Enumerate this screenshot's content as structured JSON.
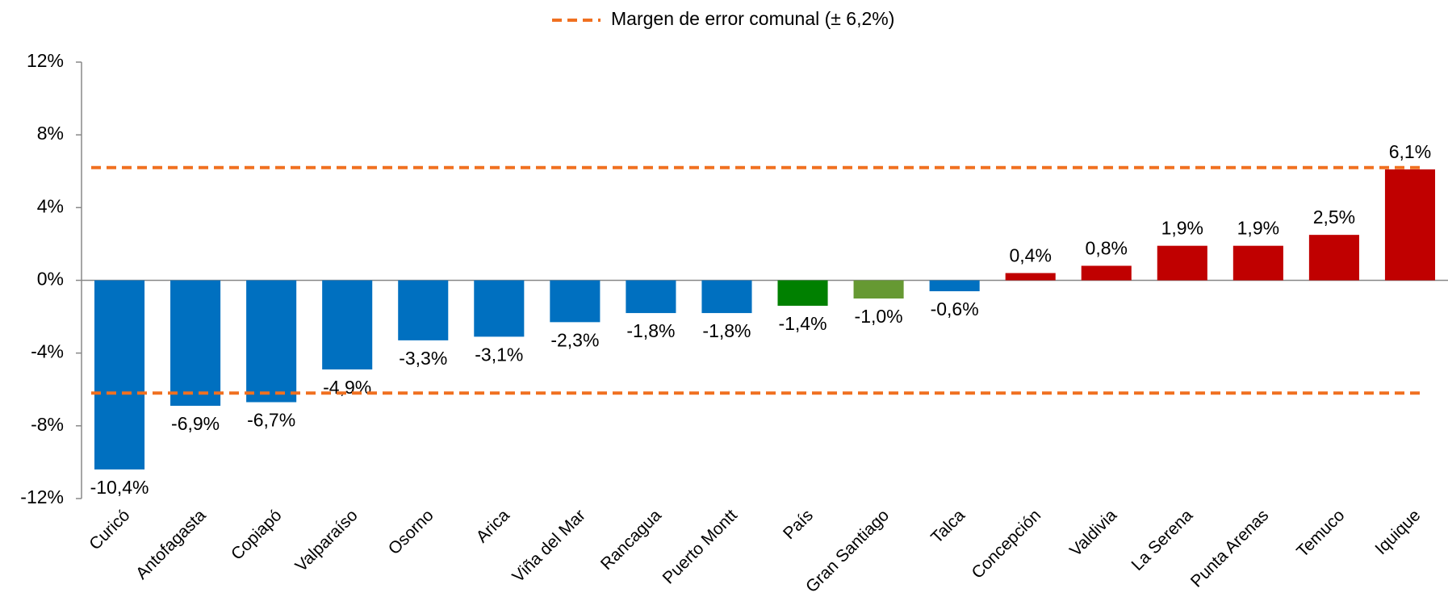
{
  "chart_data": {
    "type": "bar",
    "categories": [
      "Curicó",
      "Antofagasta",
      "Copiapó",
      "Valparaíso",
      "Osorno",
      "Arica",
      "Viña del Mar",
      "Rancagua",
      "Puerto Montt",
      "País",
      "Gran Santiago",
      "Talca",
      "Concepción",
      "Valdivia",
      "La Serena",
      "Punta Arenas",
      "Temuco",
      "Iquique"
    ],
    "values": [
      -10.4,
      -6.9,
      -6.7,
      -4.9,
      -3.3,
      -3.1,
      -2.3,
      -1.8,
      -1.8,
      -1.4,
      -1.0,
      -0.6,
      0.4,
      0.8,
      1.9,
      1.9,
      2.5,
      6.1
    ],
    "value_labels": [
      "-10,4%",
      "-6,9%",
      "-6,7%",
      "-4,9%",
      "-3,3%",
      "-3,1%",
      "-2,3%",
      "-1,8%",
      "-1,8%",
      "-1,4%",
      "-1,0%",
      "-0,6%",
      "0,4%",
      "0,8%",
      "1,9%",
      "1,9%",
      "2,5%",
      "6,1%"
    ],
    "colors": [
      "#0070c0",
      "#0070c0",
      "#0070c0",
      "#0070c0",
      "#0070c0",
      "#0070c0",
      "#0070c0",
      "#0070c0",
      "#0070c0",
      "#008000",
      "#669933",
      "#0070c0",
      "#c00000",
      "#c00000",
      "#c00000",
      "#c00000",
      "#c00000",
      "#c00000"
    ],
    "ylim": [
      -12,
      12
    ],
    "yticks": [
      {
        "value": -12,
        "label": "-12%"
      },
      {
        "value": -8,
        "label": "-8%"
      },
      {
        "value": -4,
        "label": "-4%"
      },
      {
        "value": 0,
        "label": "0%"
      },
      {
        "value": 4,
        "label": "4%"
      },
      {
        "value": 8,
        "label": "8%"
      },
      {
        "value": 12,
        "label": "12%"
      }
    ],
    "reference": {
      "name": "Margen de error comunal (± 6,2%)",
      "values": [
        6.2,
        -6.2
      ],
      "color": "#f07020"
    }
  }
}
